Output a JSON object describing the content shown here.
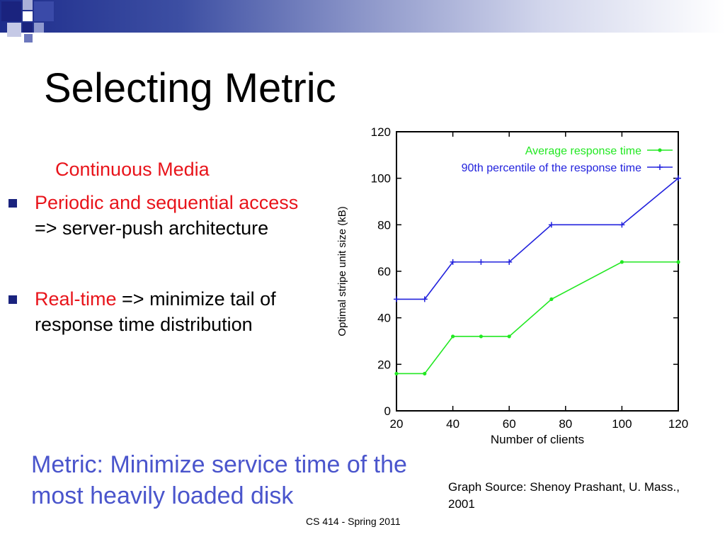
{
  "slide": {
    "title": "Selecting Metric",
    "subheading": "Continuous Media",
    "bullets": [
      {
        "highlight": "Periodic and sequential access",
        "rest": " => server-push architecture"
      },
      {
        "highlight": "Real-time",
        "rest": " => minimize tail of response time distribution"
      }
    ],
    "metric": "Metric: Minimize  service time of the most heavily loaded disk",
    "source": "Graph Source: Shenoy Prashant, U. Mass., 2001",
    "footer": "CS 414 - Spring 2011"
  },
  "colors": {
    "accent_red": "#e8141b",
    "metric_blue": "#4a55cc",
    "series_green": "#22e822",
    "series_blue": "#2222dd",
    "bullet_navy": "#1a237e"
  },
  "chart_data": {
    "type": "line",
    "xlabel": "Number of clients",
    "ylabel": "Optimal stripe unit size (kB)",
    "xlim": [
      20,
      120
    ],
    "ylim": [
      0,
      120
    ],
    "xticks": [
      20,
      40,
      60,
      80,
      100,
      120
    ],
    "yticks": [
      0,
      20,
      40,
      60,
      80,
      100,
      120
    ],
    "legend_position": "top-right",
    "series": [
      {
        "name": "Average response time",
        "color": "#22e822",
        "x": [
          20,
          30,
          40,
          50,
          60,
          75,
          100,
          120
        ],
        "y": [
          16,
          16,
          32,
          32,
          32,
          48,
          64,
          64
        ]
      },
      {
        "name": "90th percentile of the response time",
        "color": "#2222dd",
        "x": [
          20,
          30,
          40,
          50,
          60,
          75,
          100,
          120
        ],
        "y": [
          48,
          48,
          64,
          64,
          64,
          80,
          80,
          100
        ]
      }
    ]
  }
}
